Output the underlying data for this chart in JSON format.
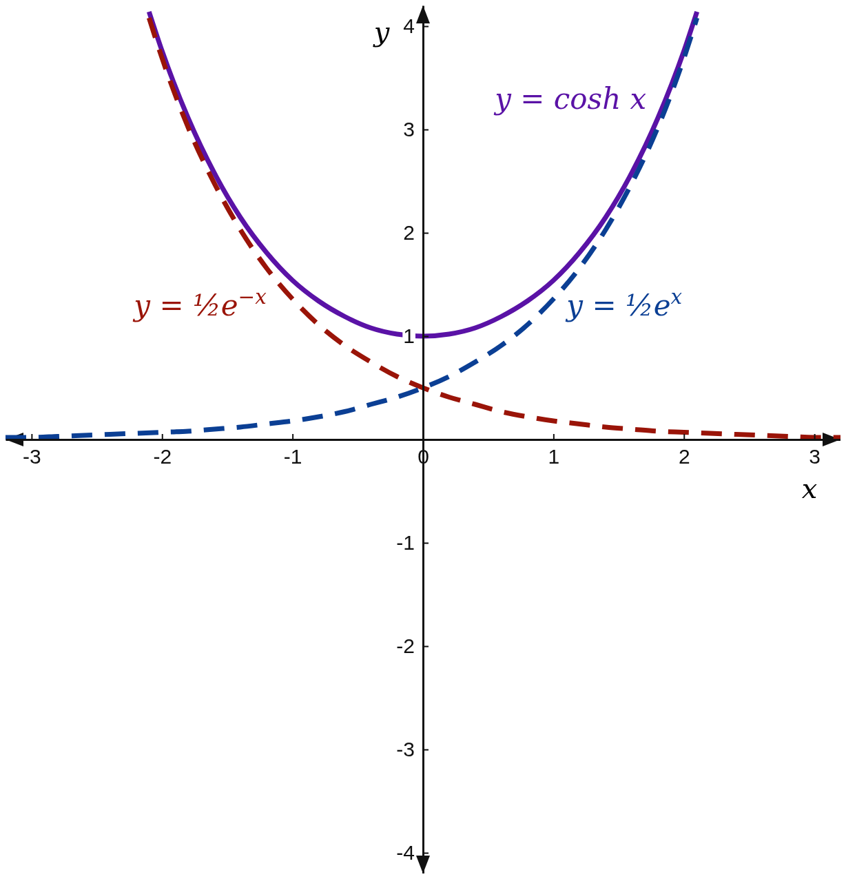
{
  "chart_data": {
    "type": "line",
    "xlabel": "x",
    "ylabel": "y",
    "xlim": [
      -3.2,
      3.2
    ],
    "ylim": [
      -4.2,
      4.2
    ],
    "xticks": [
      -3,
      -2,
      -1,
      0,
      1,
      2,
      3
    ],
    "yticks": [
      -4,
      -3,
      -2,
      -1,
      1,
      2,
      3,
      4
    ],
    "grid": false,
    "legend": false,
    "marker": "none",
    "series": [
      {
        "name": "y = cosh x",
        "color": "#5a12a6",
        "line_style": "solid",
        "x": [
          -2.1,
          -2.0,
          -1.8,
          -1.6,
          -1.4,
          -1.2,
          -1.0,
          -0.8,
          -0.6,
          -0.4,
          -0.2,
          0,
          0.2,
          0.4,
          0.6,
          0.8,
          1.0,
          1.2,
          1.4,
          1.6,
          1.8,
          2.0,
          2.1
        ],
        "values": [
          4.14,
          3.76,
          3.11,
          2.58,
          2.15,
          1.81,
          1.54,
          1.34,
          1.19,
          1.08,
          1.02,
          1,
          1.02,
          1.08,
          1.19,
          1.34,
          1.54,
          1.81,
          2.15,
          2.58,
          3.11,
          3.76,
          4.14
        ]
      },
      {
        "name": "y = ½e$^{−x}$",
        "color": "#9a1408",
        "line_style": "dashed",
        "x": [
          -2.1,
          -2.0,
          -1.8,
          -1.6,
          -1.4,
          -1.2,
          -1.0,
          -0.8,
          -0.6,
          -0.4,
          -0.2,
          0,
          0.2,
          0.4,
          0.6,
          0.8,
          1.0,
          1.2,
          1.4,
          1.6,
          1.8,
          2.0,
          2.2,
          2.4,
          2.6,
          2.8,
          3.0,
          3.2
        ],
        "values": [
          4.08,
          3.69,
          3.02,
          2.48,
          2.03,
          1.66,
          1.36,
          1.11,
          0.91,
          0.75,
          0.61,
          0.5,
          0.41,
          0.34,
          0.27,
          0.22,
          0.18,
          0.15,
          0.12,
          0.1,
          0.08,
          0.07,
          0.06,
          0.05,
          0.04,
          0.03,
          0.02,
          0.02
        ]
      },
      {
        "name": "y = ½e$^{x}$",
        "color": "#0b3f94",
        "line_style": "dashed",
        "x": [
          -3.2,
          -3.0,
          -2.8,
          -2.6,
          -2.4,
          -2.2,
          -2.0,
          -1.8,
          -1.6,
          -1.4,
          -1.2,
          -1.0,
          -0.8,
          -0.6,
          -0.4,
          -0.2,
          0,
          0.2,
          0.4,
          0.6,
          0.8,
          1.0,
          1.2,
          1.4,
          1.6,
          1.8,
          2.0,
          2.1
        ],
        "values": [
          0.02,
          0.02,
          0.03,
          0.04,
          0.05,
          0.06,
          0.07,
          0.08,
          0.1,
          0.12,
          0.15,
          0.18,
          0.22,
          0.27,
          0.34,
          0.41,
          0.5,
          0.61,
          0.75,
          0.91,
          1.11,
          1.36,
          1.66,
          2.03,
          2.48,
          3.02,
          3.69,
          4.08
        ]
      }
    ]
  }
}
